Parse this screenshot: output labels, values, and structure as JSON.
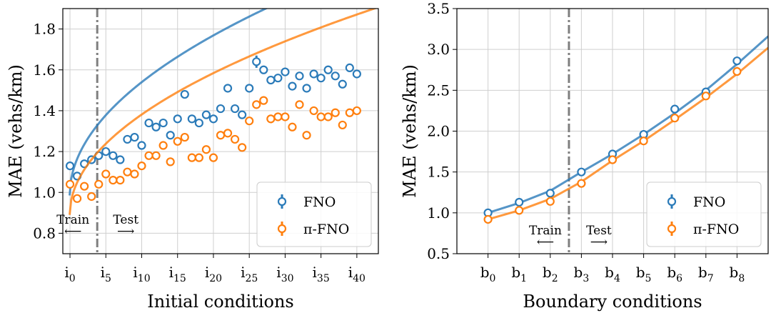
{
  "colors": {
    "fno": "#2b7bb9",
    "pifno": "#ff7f0e",
    "divider": "#7f7f7f"
  },
  "chart_data": [
    {
      "type": "scatter",
      "xlabel": "Initial conditions",
      "ylabel": "MAE (vehs/km)",
      "ylim": [
        0.7,
        1.9
      ],
      "xlim": [
        -1,
        43
      ],
      "grid": true,
      "legend_position": "bottom-right",
      "yticks": [
        "0.8",
        "1.0",
        "1.2",
        "1.4",
        "1.6",
        "1.8"
      ],
      "xticks": [
        {
          "x": 0,
          "base": "i",
          "sub": "0"
        },
        {
          "x": 5,
          "base": "i",
          "sub": "5"
        },
        {
          "x": 10,
          "base": "i",
          "sub": "10"
        },
        {
          "x": 15,
          "base": "i",
          "sub": "15"
        },
        {
          "x": 20,
          "base": "i",
          "sub": "20"
        },
        {
          "x": 25,
          "base": "i",
          "sub": "25"
        },
        {
          "x": 30,
          "base": "i",
          "sub": "30"
        },
        {
          "x": 35,
          "base": "i",
          "sub": "35"
        },
        {
          "x": 40,
          "base": "i",
          "sub": "40"
        }
      ],
      "divider_x": 3.8,
      "annotations": {
        "train": "Train",
        "test": "Test",
        "train_arrow": "⟵",
        "test_arrow": "⟶"
      },
      "series": [
        {
          "name": "FNO",
          "x": [
            0,
            1,
            2,
            3,
            4,
            5,
            6,
            7,
            8,
            9,
            10,
            11,
            12,
            13,
            14,
            15,
            16,
            17,
            18,
            19,
            20,
            21,
            22,
            23,
            24,
            25,
            26,
            27,
            28,
            29,
            30,
            31,
            32,
            33,
            34,
            35,
            36,
            37,
            38,
            39,
            40
          ],
          "y": [
            1.13,
            1.08,
            1.14,
            1.16,
            1.18,
            1.2,
            1.18,
            1.16,
            1.26,
            1.27,
            1.23,
            1.34,
            1.32,
            1.34,
            1.28,
            1.36,
            1.48,
            1.36,
            1.34,
            1.38,
            1.36,
            1.41,
            1.51,
            1.41,
            1.38,
            1.51,
            1.64,
            1.6,
            1.55,
            1.56,
            1.59,
            1.52,
            1.57,
            1.51,
            1.58,
            1.56,
            1.6,
            1.57,
            1.53,
            1.61,
            1.58
          ],
          "err": [
            0.01,
            0.01,
            0.01,
            0.01,
            0.01,
            0.01,
            0.01,
            0.01,
            0.01,
            0.01,
            0.01,
            0.01,
            0.01,
            0.01,
            0.01,
            0.01,
            0.01,
            0.01,
            0.01,
            0.01,
            0.01,
            0.01,
            0.01,
            0.01,
            0.01,
            0.02,
            0.03,
            0.01,
            0.01,
            0.01,
            0.01,
            0.01,
            0.01,
            0.01,
            0.02,
            0.01,
            0.01,
            0.01,
            0.02,
            0.02,
            0.02
          ],
          "fit": {
            "a": 0.985,
            "b": 0.175,
            "c": 0.8
          }
        },
        {
          "name": "π-FNO",
          "x": [
            0,
            1,
            2,
            3,
            4,
            5,
            6,
            7,
            8,
            9,
            10,
            11,
            12,
            13,
            14,
            15,
            16,
            17,
            18,
            19,
            20,
            21,
            22,
            23,
            24,
            25,
            26,
            27,
            28,
            29,
            30,
            31,
            32,
            33,
            34,
            35,
            36,
            37,
            38,
            39,
            40
          ],
          "y": [
            1.04,
            0.97,
            1.03,
            0.98,
            1.04,
            1.09,
            1.06,
            1.06,
            1.1,
            1.09,
            1.13,
            1.18,
            1.18,
            1.23,
            1.15,
            1.25,
            1.27,
            1.17,
            1.17,
            1.21,
            1.17,
            1.28,
            1.29,
            1.26,
            1.22,
            1.35,
            1.43,
            1.45,
            1.36,
            1.37,
            1.37,
            1.32,
            1.43,
            1.28,
            1.4,
            1.37,
            1.37,
            1.39,
            1.33,
            1.39,
            1.4
          ],
          "err": [
            0.01,
            0.01,
            0.01,
            0.01,
            0.01,
            0.01,
            0.01,
            0.01,
            0.01,
            0.01,
            0.01,
            0.01,
            0.01,
            0.01,
            0.01,
            0.01,
            0.01,
            0.01,
            0.01,
            0.01,
            0.01,
            0.01,
            0.01,
            0.01,
            0.01,
            0.01,
            0.02,
            0.01,
            0.01,
            0.01,
            0.01,
            0.01,
            0.02,
            0.01,
            0.02,
            0.01,
            0.01,
            0.01,
            0.01,
            0.01,
            0.01
          ],
          "fit": {
            "a": 0.89,
            "b": 0.155,
            "c": 0.8
          }
        }
      ]
    },
    {
      "type": "line",
      "xlabel": "Boundary conditions",
      "ylabel": "MAE (vehs/km)",
      "ylim": [
        0.5,
        3.5
      ],
      "xlim": [
        -1,
        9
      ],
      "grid": true,
      "legend_position": "bottom-right",
      "yticks": [
        "0.5",
        "1.0",
        "1.5",
        "2.0",
        "2.5",
        "3.0",
        "3.5"
      ],
      "xticks": [
        {
          "x": 0,
          "base": "b",
          "sub": "0"
        },
        {
          "x": 1,
          "base": "b",
          "sub": "1"
        },
        {
          "x": 2,
          "base": "b",
          "sub": "2"
        },
        {
          "x": 3,
          "base": "b",
          "sub": "3"
        },
        {
          "x": 4,
          "base": "b",
          "sub": "4"
        },
        {
          "x": 5,
          "base": "b",
          "sub": "5"
        },
        {
          "x": 6,
          "base": "b",
          "sub": "6"
        },
        {
          "x": 7,
          "base": "b",
          "sub": "7"
        },
        {
          "x": 8,
          "base": "b",
          "sub": "8"
        }
      ],
      "divider_x": 2.6,
      "annotations": {
        "train": "Train",
        "test": "Test",
        "train_arrow": "⟵",
        "test_arrow": "⟶"
      },
      "series": [
        {
          "name": "FNO",
          "x": [
            0,
            1,
            2,
            3,
            4,
            5,
            6,
            7,
            8
          ],
          "y": [
            1.0,
            1.13,
            1.24,
            1.5,
            1.72,
            1.96,
            2.27,
            2.48,
            2.86
          ],
          "err": [
            0.02,
            0.02,
            0.02,
            0.03,
            0.03,
            0.03,
            0.04,
            0.04,
            0.05
          ],
          "line_x": [
            0,
            1,
            2,
            3,
            4,
            5,
            6,
            7,
            8,
            9
          ],
          "line_y": [
            1.0,
            1.12,
            1.27,
            1.5,
            1.72,
            1.96,
            2.22,
            2.5,
            2.82,
            3.16
          ]
        },
        {
          "name": "π-FNO",
          "x": [
            0,
            1,
            2,
            3,
            4,
            5,
            6,
            7,
            8
          ],
          "y": [
            0.92,
            1.03,
            1.14,
            1.36,
            1.65,
            1.88,
            2.16,
            2.43,
            2.73
          ],
          "err": [
            0.02,
            0.02,
            0.02,
            0.03,
            0.03,
            0.03,
            0.03,
            0.04,
            0.05
          ],
          "line_x": [
            0,
            1,
            2,
            3,
            4,
            5,
            6,
            7,
            8,
            9
          ],
          "line_y": [
            0.92,
            1.03,
            1.17,
            1.38,
            1.64,
            1.88,
            2.14,
            2.41,
            2.7,
            3.02
          ]
        }
      ]
    }
  ]
}
